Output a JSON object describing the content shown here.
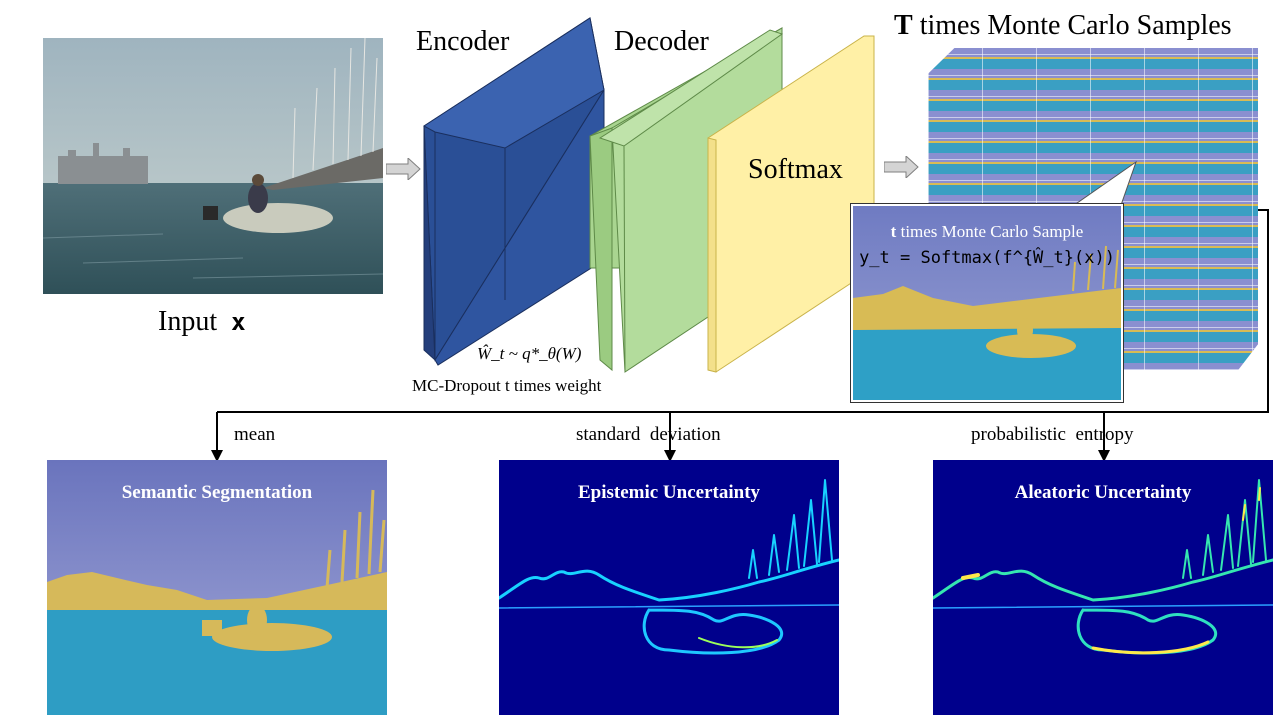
{
  "input": {
    "label": "Input",
    "symbol": "x"
  },
  "network": {
    "encoder_label": "Encoder",
    "decoder_label": "Decoder",
    "softmax_label": "Softmax",
    "weight_formula": "Ŵ_t ~ q*_θ(W)",
    "weight_caption": "MC-Dropout t times weight"
  },
  "samples": {
    "title_bold": "T",
    "title_rest": " times Monte Carlo Samples",
    "callout_line1_bold": "t",
    "callout_line1_rest": " times Monte Carlo Sample",
    "callout_formula": "y_t = Softmax(f^{Ŵ_t}(x))"
  },
  "branches": [
    {
      "label": "mean",
      "output_title": "Semantic Segmentation"
    },
    {
      "label": "standard  deviation",
      "output_title": "Epistemic Uncertainty"
    },
    {
      "label": "probabilistic  entropy",
      "output_title": "Aleatoric Uncertainty"
    }
  ],
  "colors": {
    "encoder": "#2f55a0",
    "decoder": "#a9d590",
    "softmax": "#fff0a6",
    "uncertainty_bg": "#00008c",
    "sky": "#7c86c4",
    "water": "#3a9fc3",
    "highlight": "#d8bb55"
  }
}
